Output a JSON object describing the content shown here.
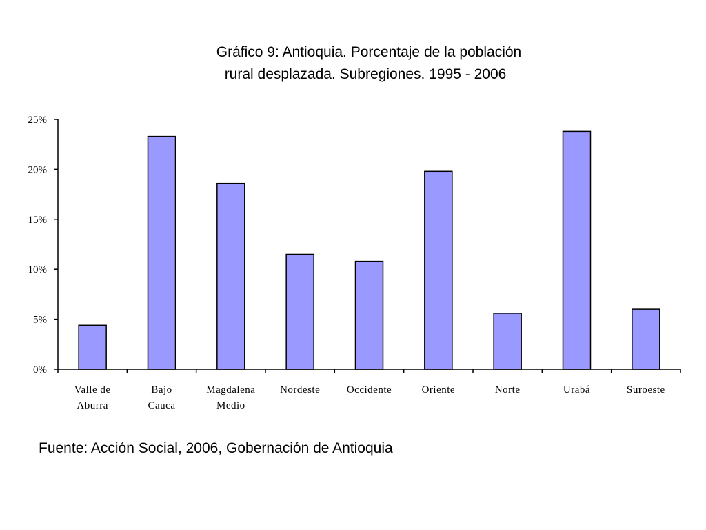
{
  "chart_data": {
    "type": "bar",
    "title_lines": [
      "Gráfico 9: Antioquia. Porcentaje de la población",
      "rural desplazada. Subregiones. 1995 - 2006"
    ],
    "categories": [
      [
        "Valle de",
        "Aburra"
      ],
      [
        "Bajo",
        "Cauca"
      ],
      [
        "Magdalena",
        "Medio"
      ],
      [
        "Nordeste"
      ],
      [
        "Occidente"
      ],
      [
        "Oriente"
      ],
      [
        "Norte"
      ],
      [
        "Urabá"
      ],
      [
        "Suroeste"
      ]
    ],
    "values": [
      4.4,
      23.3,
      18.6,
      11.5,
      10.8,
      19.8,
      5.6,
      23.8,
      6.0
    ],
    "ylim": [
      0,
      25
    ],
    "yticks": [
      0,
      5,
      10,
      15,
      20,
      25
    ],
    "ytick_labels": [
      "0%",
      "5%",
      "10%",
      "15%",
      "20%",
      "25%"
    ],
    "bar_color": "#9999ff",
    "grid": false,
    "legend": "none"
  },
  "source": "Fuente: Acción Social, 2006, Gobernación de Antioquia"
}
